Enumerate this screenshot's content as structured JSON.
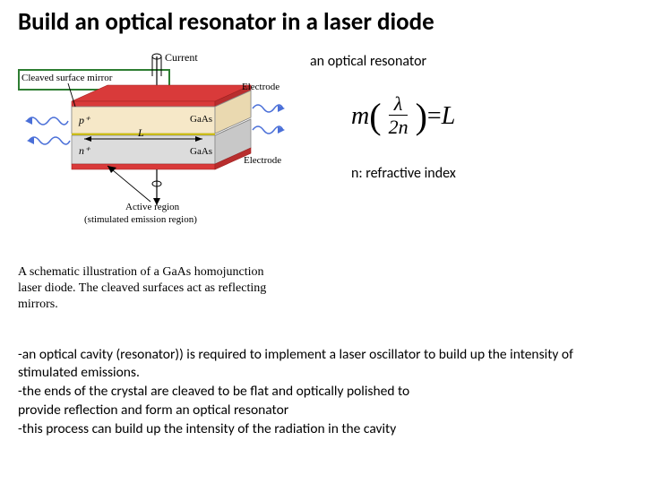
{
  "title": "Build an optical resonator in a laser diode",
  "subtitle": "an optical resonator",
  "equation": {
    "lhs_m": "m",
    "lparen": "(",
    "num": "λ",
    "den": "2n",
    "rparen": ")",
    "eq": " = ",
    "rhs": "L"
  },
  "note": "n: refractive index",
  "diagram": {
    "labels": {
      "current": "Current",
      "cleaved": "Cleaved surface mirror",
      "electrode_top": "Electrode",
      "electrode_bottom": "Electrode",
      "p_plus": "p⁺",
      "n_plus": "n⁺",
      "gaas_top": "GaAs",
      "gaas_bottom": "GaAs",
      "l_symbol": "L",
      "active": "Active region",
      "stimulated": "(stimulated emission region)"
    },
    "colors": {
      "electrode": "#d93a3a",
      "p_layer": "#f6e8c8",
      "n_layer": "#dcdcdc",
      "active_line": "#d6c400",
      "wave": "#4a6fd8",
      "outline": "#888888",
      "arrow": "#000000"
    }
  },
  "caption": "A schematic illustration of a GaAs homojunction laser diode. The cleaved surfaces act as reflecting mirrors.",
  "body_text": "-an optical cavity (resonator)) is required to implement a laser oscillator to build up the intensity of stimulated emissions.\n-the ends of the crystal are cleaved to be flat and optically polished to\n provide reflection and form an optical resonator\n-this process can build up the intensity of the radiation in the cavity"
}
